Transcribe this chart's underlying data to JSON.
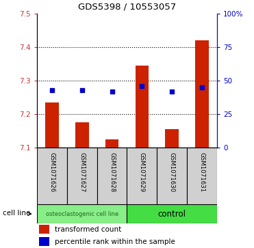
{
  "title": "GDS5398 / 10553057",
  "samples": [
    "GSM1071626",
    "GSM1071627",
    "GSM1071628",
    "GSM1071629",
    "GSM1071630",
    "GSM1071631"
  ],
  "transformed_counts": [
    7.235,
    7.175,
    7.125,
    7.345,
    7.155,
    7.42
  ],
  "percentile_ranks": [
    43,
    43,
    42,
    46,
    42,
    45
  ],
  "ylim_left": [
    7.1,
    7.5
  ],
  "ylim_right": [
    0,
    100
  ],
  "yticks_left": [
    7.1,
    7.2,
    7.3,
    7.4,
    7.5
  ],
  "yticks_right": [
    0,
    25,
    50,
    75,
    100
  ],
  "ytick_labels_right": [
    "0",
    "25",
    "50",
    "75",
    "100%"
  ],
  "bar_color": "#cc2200",
  "dot_color": "#0000cc",
  "groups": [
    {
      "label": "osteoclastogenic cell line",
      "start": 0,
      "end": 2,
      "color": "#88ee88"
    },
    {
      "label": "control",
      "start": 3,
      "end": 5,
      "color": "#44dd44"
    }
  ],
  "group_label_prefix": "cell line",
  "legend_bar_label": "transformed count",
  "legend_dot_label": "percentile rank within the sample",
  "bar_width": 0.45,
  "bar_bottom": 7.1,
  "plot_bg": "#ffffff",
  "tick_label_color_left": "#cc3333",
  "tick_label_color_right": "#0000cc",
  "sample_box_color": "#d0d0d0",
  "grid_dotted_ticks": [
    7.2,
    7.3,
    7.4
  ]
}
